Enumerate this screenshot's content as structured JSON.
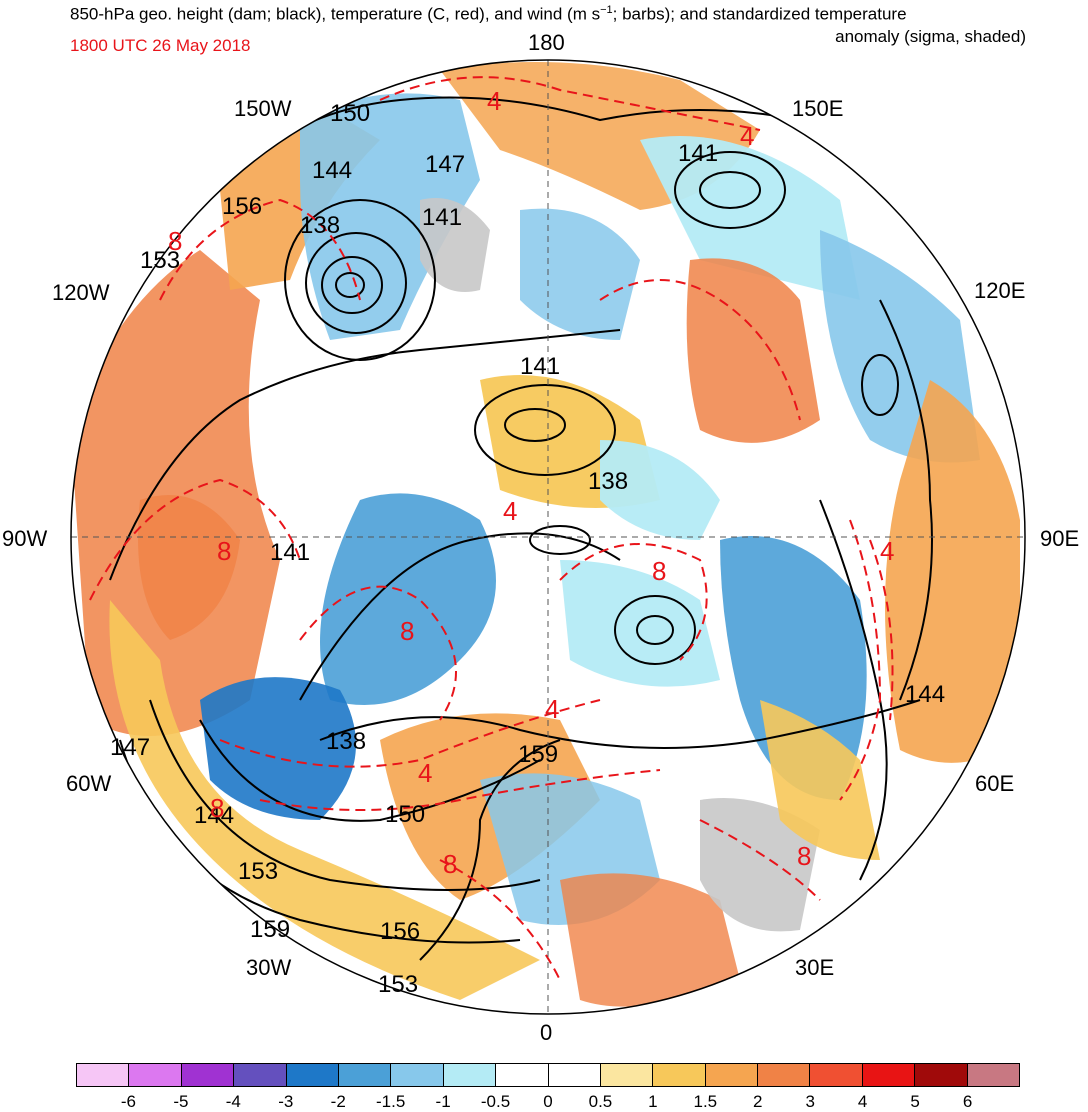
{
  "header": {
    "title_main": "850-hPa geo. height (dam; black), temperature (C, red), and wind (m s",
    "title_sup": "−1",
    "title_tail": "; barbs); and standardized temperature",
    "title_line2": "anomaly (sigma, shaded)",
    "valid_time": "1800 UTC 26 May 2018"
  },
  "longitude_labels": {
    "north": "180",
    "nne": "150E",
    "ene": "120E",
    "east": "90E",
    "ese": "60E",
    "sse": "30E",
    "south": "0",
    "ssw": "30W",
    "wsw": "60W",
    "west": "90W",
    "wnw": "120W",
    "nnw": "150W"
  },
  "height_labels": [
    {
      "text": "150"
    },
    {
      "text": "144"
    },
    {
      "text": "147"
    },
    {
      "text": "141"
    },
    {
      "text": "141"
    },
    {
      "text": "156"
    },
    {
      "text": "138"
    },
    {
      "text": "153"
    },
    {
      "text": "141"
    },
    {
      "text": "138"
    },
    {
      "text": "141"
    },
    {
      "text": "138"
    },
    {
      "text": "159"
    },
    {
      "text": "150"
    },
    {
      "text": "144"
    },
    {
      "text": "144"
    },
    {
      "text": "147"
    },
    {
      "text": "153"
    },
    {
      "text": "159"
    },
    {
      "text": "156"
    },
    {
      "text": "153"
    }
  ],
  "temperature_labels": [
    {
      "text": "4"
    },
    {
      "text": "4"
    },
    {
      "text": "8"
    },
    {
      "text": "8"
    },
    {
      "text": "8"
    },
    {
      "text": "8"
    },
    {
      "text": "4"
    },
    {
      "text": "4"
    },
    {
      "text": "4"
    },
    {
      "text": "8"
    },
    {
      "text": "8"
    },
    {
      "text": "8"
    },
    {
      "text": "4"
    }
  ],
  "colorbar": {
    "colors": [
      "#f6c6f6",
      "#dc78f0",
      "#a032d2",
      "#6450be",
      "#1e78c8",
      "#4ba0d7",
      "#87c8eb",
      "#b4ebf5",
      "#ffffff",
      "#ffffff",
      "#fbe6a0",
      "#f7c85a",
      "#f5a550",
      "#f08246",
      "#f05032",
      "#e81414",
      "#a00a0a",
      "#c87882"
    ],
    "ticks": [
      "-6",
      "-5",
      "-4",
      "-3",
      "-2",
      "-1.5",
      "-1",
      "-0.5",
      "0",
      "0.5",
      "1",
      "1.5",
      "2",
      "3",
      "4",
      "5",
      "6"
    ]
  },
  "colors": {
    "height_contour": "#000000",
    "temperature_contour": "#e8141a",
    "land": "#c8c8c8"
  }
}
